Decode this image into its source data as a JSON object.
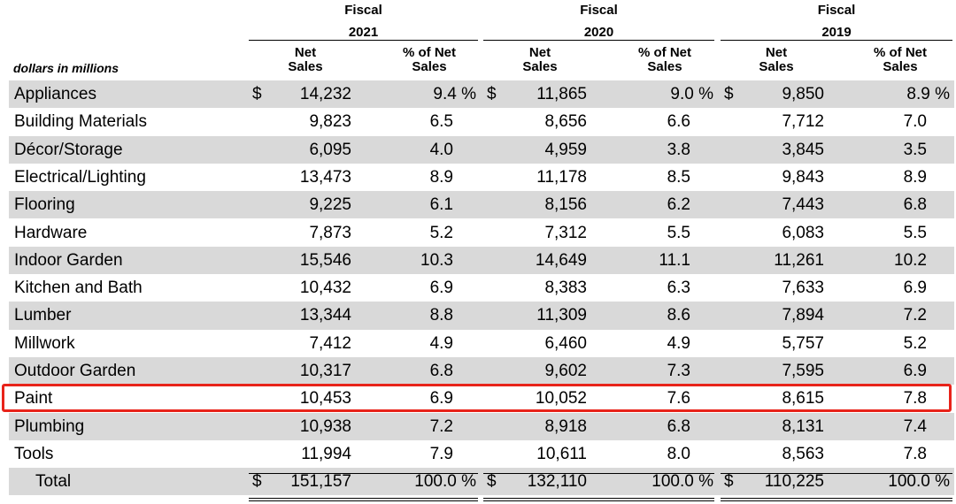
{
  "header": {
    "fiscal_label": "Fiscal",
    "years": [
      "2021",
      "2020",
      "2019"
    ],
    "net_sales_label": "Net Sales",
    "pct_label": "% of Net Sales",
    "units_label": "dollars in millions"
  },
  "rows": [
    {
      "label": "Appliances",
      "v2021": "14,232",
      "p2021": "9.4 %",
      "v2020": "11,865",
      "p2020": "9.0 %",
      "v2019": "9,850",
      "p2019": "8.9 %",
      "currency": "$"
    },
    {
      "label": "Building Materials",
      "v2021": "9,823",
      "p2021": "6.5",
      "v2020": "8,656",
      "p2020": "6.6",
      "v2019": "7,712",
      "p2019": "7.0"
    },
    {
      "label": "Décor/Storage",
      "v2021": "6,095",
      "p2021": "4.0",
      "v2020": "4,959",
      "p2020": "3.8",
      "v2019": "3,845",
      "p2019": "3.5"
    },
    {
      "label": "Electrical/Lighting",
      "v2021": "13,473",
      "p2021": "8.9",
      "v2020": "11,178",
      "p2020": "8.5",
      "v2019": "9,843",
      "p2019": "8.9"
    },
    {
      "label": "Flooring",
      "v2021": "9,225",
      "p2021": "6.1",
      "v2020": "8,156",
      "p2020": "6.2",
      "v2019": "7,443",
      "p2019": "6.8"
    },
    {
      "label": "Hardware",
      "v2021": "7,873",
      "p2021": "5.2",
      "v2020": "7,312",
      "p2020": "5.5",
      "v2019": "6,083",
      "p2019": "5.5"
    },
    {
      "label": "Indoor Garden",
      "v2021": "15,546",
      "p2021": "10.3",
      "v2020": "14,649",
      "p2020": "11.1",
      "v2019": "11,261",
      "p2019": "10.2"
    },
    {
      "label": "Kitchen and Bath",
      "v2021": "10,432",
      "p2021": "6.9",
      "v2020": "8,383",
      "p2020": "6.3",
      "v2019": "7,633",
      "p2019": "6.9"
    },
    {
      "label": "Lumber",
      "v2021": "13,344",
      "p2021": "8.8",
      "v2020": "11,309",
      "p2020": "8.6",
      "v2019": "7,894",
      "p2019": "7.2"
    },
    {
      "label": "Millwork",
      "v2021": "7,412",
      "p2021": "4.9",
      "v2020": "6,460",
      "p2020": "4.9",
      "v2019": "5,757",
      "p2019": "5.2"
    },
    {
      "label": "Outdoor Garden",
      "v2021": "10,317",
      "p2021": "6.8",
      "v2020": "9,602",
      "p2020": "7.3",
      "v2019": "7,595",
      "p2019": "6.9"
    },
    {
      "label": "Paint",
      "v2021": "10,453",
      "p2021": "6.9",
      "v2020": "10,052",
      "p2020": "7.6",
      "v2019": "8,615",
      "p2019": "7.8",
      "highlighted": true
    },
    {
      "label": "Plumbing",
      "v2021": "10,938",
      "p2021": "7.2",
      "v2020": "8,918",
      "p2020": "6.8",
      "v2019": "8,131",
      "p2019": "7.4"
    },
    {
      "label": "Tools",
      "v2021": "11,994",
      "p2021": "7.9",
      "v2020": "10,611",
      "p2020": "8.0",
      "v2019": "8,563",
      "p2019": "7.8"
    },
    {
      "label": "Total",
      "v2021": "151,157",
      "p2021": "100.0 %",
      "v2020": "132,110",
      "p2020": "100.0 %",
      "v2019": "110,225",
      "p2019": "100.0 %",
      "currency": "$",
      "indent": true
    }
  ],
  "colors": {
    "shade": "#d9d9d9",
    "highlight": "#e8231a"
  }
}
